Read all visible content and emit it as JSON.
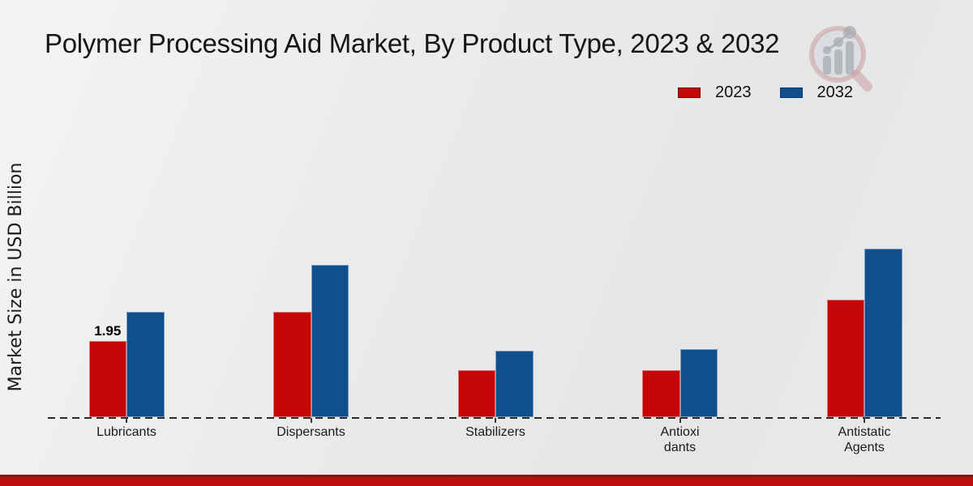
{
  "title": "Polymer Processing Aid Market, By Product Type, 2023 & 2032",
  "y_axis_label": "Market Size in USD Billion",
  "legend": [
    {
      "label": "2023",
      "color": "#c40606",
      "border": "#7a0606"
    },
    {
      "label": "2032",
      "color": "#114e8e",
      "border": "#0c3a69"
    }
  ],
  "chart_data": {
    "type": "bar",
    "title": "Polymer Processing Aid Market, By Product Type, 2023 & 2032",
    "xlabel": "",
    "ylabel": "Market Size in USD Billion",
    "categories": [
      "Lubricants",
      "Dispersants",
      "Stabilizers",
      "Antioxidants",
      "Antistatic Agents"
    ],
    "tick_labels": [
      "Lubricants",
      "Dispersants",
      "Stabilizers",
      "Antioxi\ndants",
      "Antistatic\nAgents"
    ],
    "series": [
      {
        "name": "2023",
        "color": "#c40606",
        "values": [
          1.95,
          2.7,
          1.2,
          1.2,
          3.0
        ]
      },
      {
        "name": "2032",
        "color": "#114e8e",
        "values": [
          2.7,
          3.9,
          1.7,
          1.75,
          4.3
        ]
      }
    ],
    "data_labels": [
      {
        "series": 0,
        "category": 0,
        "text": "1.95"
      }
    ],
    "baseline_style": "dashed",
    "grid": false,
    "legend_position": "top-right"
  },
  "footer": {
    "bar_color": "#bf0b0b",
    "bar_top_color": "#8e0d0d"
  },
  "logo": {
    "name": "magnifier-bar-chart-watermark"
  }
}
